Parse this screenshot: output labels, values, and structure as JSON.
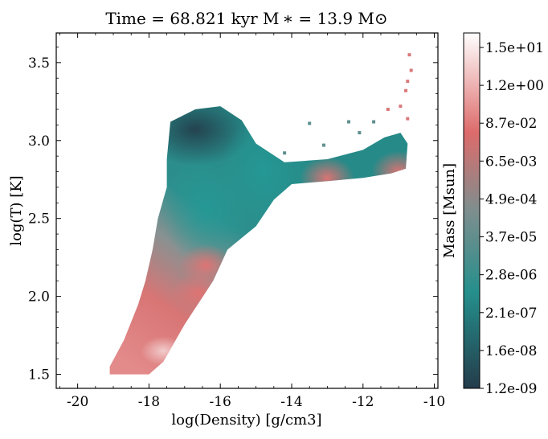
{
  "chart_data": {
    "type": "heatmap",
    "title": "Time = 68.821 kyr    M ∗ = 13.9 M⊙",
    "xlabel": "log(Density) [g/cm3]",
    "ylabel": "log(T) [K]",
    "xlim": [
      -20.6,
      -9.9
    ],
    "ylim": [
      1.41,
      3.69
    ],
    "x_ticks": [
      -20,
      -18,
      -16,
      -14,
      -12,
      -10
    ],
    "x_tick_labels": [
      "-20",
      "-18",
      "-16",
      "-14",
      "-12",
      "-10"
    ],
    "y_ticks": [
      1.5,
      2.0,
      2.5,
      3.0,
      3.5
    ],
    "y_tick_labels": [
      "1.5",
      "2.0",
      "2.5",
      "3.0",
      "3.5"
    ],
    "grid": false,
    "colorbar": {
      "label": "Mass [Msun]",
      "scale": "log",
      "range": [
        1.2e-09,
        15
      ],
      "tick_labels": [
        "1.2e-09",
        "1.6e-08",
        "2.1e-07",
        "2.8e-06",
        "3.7e-05",
        "4.9e-04",
        "6.5e-03",
        "8.7e-02",
        "1.2e+00",
        "1.5e+01"
      ],
      "colors": [
        "#243c4b",
        "#258f8c",
        "#7e8e8e",
        "#dd6b6b",
        "#ffffff"
      ]
    },
    "region_outline": [
      [
        -19.1,
        1.5
      ],
      [
        -18.0,
        1.5
      ],
      [
        -17.6,
        1.58
      ],
      [
        -17.0,
        1.82
      ],
      [
        -16.2,
        2.1
      ],
      [
        -15.8,
        2.3
      ],
      [
        -15.0,
        2.45
      ],
      [
        -14.5,
        2.62
      ],
      [
        -14.0,
        2.72
      ],
      [
        -13.0,
        2.74
      ],
      [
        -12.0,
        2.76
      ],
      [
        -11.2,
        2.79
      ],
      [
        -10.8,
        2.82
      ],
      [
        -10.75,
        2.98
      ],
      [
        -10.95,
        3.05
      ],
      [
        -11.4,
        3.02
      ],
      [
        -12.0,
        2.94
      ],
      [
        -13.0,
        2.88
      ],
      [
        -14.2,
        2.86
      ],
      [
        -15.0,
        2.98
      ],
      [
        -15.4,
        3.13
      ],
      [
        -16.0,
        3.22
      ],
      [
        -16.7,
        3.2
      ],
      [
        -17.4,
        3.12
      ],
      [
        -17.5,
        2.88
      ],
      [
        -17.5,
        2.7
      ],
      [
        -17.75,
        2.5
      ],
      [
        -17.9,
        2.3
      ],
      [
        -18.1,
        2.1
      ],
      [
        -18.3,
        1.95
      ],
      [
        -18.7,
        1.72
      ],
      [
        -19.1,
        1.55
      ]
    ],
    "mass_concentrations": [
      {
        "x": -17.6,
        "y": 1.65,
        "mass": 1.2
      },
      {
        "x": -16.6,
        "y": 2.02,
        "mass": 0.09
      },
      {
        "x": -16.4,
        "y": 2.2,
        "mass": 0.05
      },
      {
        "x": -13.0,
        "y": 2.76,
        "mass": 0.006
      },
      {
        "x": -11.0,
        "y": 2.8,
        "mass": 0.0065
      }
    ],
    "low_mass_regions": [
      {
        "x": -16.7,
        "y": 3.07,
        "mass": 1e-08
      },
      {
        "x": -16.4,
        "y": 2.55,
        "mass": 3e-06
      },
      {
        "x": -14.8,
        "y": 2.8,
        "mass": 4e-06
      }
    ],
    "scattered_points": [
      {
        "x": -10.7,
        "y": 3.55
      },
      {
        "x": -10.65,
        "y": 3.45
      },
      {
        "x": -10.75,
        "y": 3.38
      },
      {
        "x": -10.8,
        "y": 3.32
      },
      {
        "x": -10.95,
        "y": 3.22
      },
      {
        "x": -11.3,
        "y": 3.2
      },
      {
        "x": -10.75,
        "y": 3.14
      },
      {
        "x": -11.7,
        "y": 3.12
      },
      {
        "x": -12.1,
        "y": 3.05
      },
      {
        "x": -12.4,
        "y": 3.12
      },
      {
        "x": -13.5,
        "y": 3.11
      },
      {
        "x": -13.1,
        "y": 2.97
      },
      {
        "x": -14.2,
        "y": 2.92
      }
    ]
  }
}
